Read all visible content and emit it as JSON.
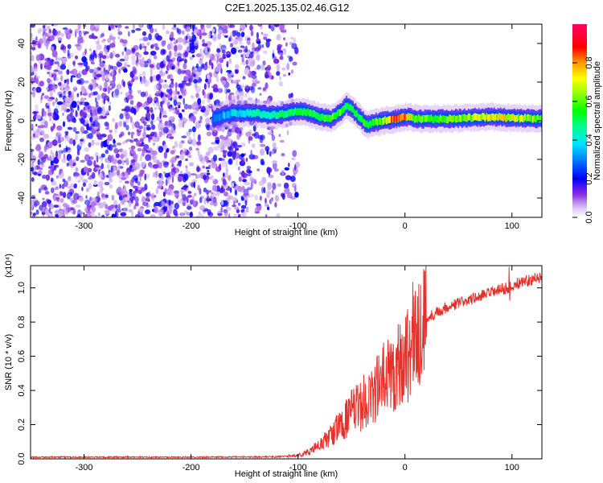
{
  "title": "C2E1.2025.135.02.46.G12",
  "chart_data": [
    {
      "type": "heatmap",
      "xlabel": "Height of straight line (km)",
      "ylabel": "Frequency (Hz)",
      "xlim": [
        -350,
        128
      ],
      "ylim": [
        -50,
        50
      ],
      "xticks": [
        -300,
        -200,
        -100,
        0,
        100
      ],
      "yticks": [
        -40,
        -20,
        0,
        20,
        40
      ],
      "colorbar": {
        "label": "Normalized spectral amplitude",
        "range": [
          0,
          1
        ],
        "ticks": [
          "0.0",
          "0.2",
          "0.4",
          "0.6",
          "0.8"
        ],
        "tick_values": [
          0.0,
          0.2,
          0.4,
          0.6,
          0.8
        ]
      },
      "noise_region": {
        "x_range": [
          -350,
          -100
        ],
        "full_band_until": -165,
        "sparse_until": -100
      },
      "signal_trace": {
        "x": [
          -180,
          -170,
          -160,
          -150,
          -140,
          -130,
          -120,
          -110,
          -100,
          -90,
          -80,
          -70,
          -60,
          -55,
          -50,
          -45,
          -40,
          -35,
          -30,
          -20,
          -10,
          0,
          10,
          20,
          40,
          60,
          80,
          100,
          128
        ],
        "frequency": [
          1,
          3,
          4,
          4,
          4,
          3,
          3,
          4,
          5,
          4,
          2,
          1,
          5,
          8,
          6,
          3,
          0,
          -2,
          -1,
          0,
          1,
          2,
          1,
          1,
          1,
          1.5,
          2,
          1.5,
          1
        ],
        "peak_amplitude": [
          0.3,
          0.35,
          0.4,
          0.4,
          0.45,
          0.45,
          0.5,
          0.5,
          0.5,
          0.55,
          0.55,
          0.6,
          0.6,
          0.5,
          0.5,
          0.55,
          0.6,
          0.6,
          0.6,
          0.65,
          0.9,
          0.8,
          0.6,
          0.6,
          0.6,
          0.65,
          0.75,
          0.7,
          0.6
        ]
      }
    },
    {
      "type": "line",
      "xlabel": "Height of straight line (km)",
      "ylabel": "SNR (10 * v/v)",
      "y_multiplier": "(x10⁴)",
      "xlim": [
        -350,
        128
      ],
      "ylim": [
        0,
        1.13
      ],
      "xticks": [
        -300,
        -200,
        -100,
        0,
        100
      ],
      "yticks": [
        0.0,
        0.2,
        0.4,
        0.6,
        0.8,
        1.0
      ],
      "ytick_labels": [
        "0.0",
        "0.2",
        "0.4",
        "0.6",
        "0.8",
        "1.0"
      ],
      "color": "#e8302a",
      "series": [
        {
          "x": [
            -350,
            -200,
            -120,
            -100,
            -90,
            -80,
            -70,
            -60,
            -50,
            -40,
            -30,
            -20,
            -10,
            0,
            10,
            20,
            30,
            40,
            60,
            80,
            100,
            110,
            128
          ],
          "values": [
            0.01,
            0.01,
            0.012,
            0.02,
            0.04,
            0.08,
            0.13,
            0.2,
            0.27,
            0.32,
            0.38,
            0.46,
            0.52,
            0.6,
            0.73,
            0.82,
            0.86,
            0.89,
            0.93,
            0.97,
            1.01,
            1.04,
            1.06
          ]
        }
      ]
    }
  ]
}
